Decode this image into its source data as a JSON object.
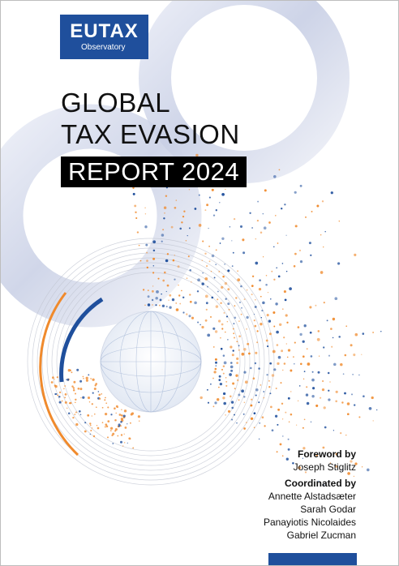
{
  "logo": {
    "main": "EUTAX",
    "sub": "Observatory"
  },
  "title": {
    "line1": "GLOBAL",
    "line2": "TAX EVASION",
    "line3": "REPORT 2024"
  },
  "credits": {
    "foreword_heading": "Foreword by",
    "foreword_names": [
      "Joseph Stiglitz"
    ],
    "coordinated_heading": "Coordinated by",
    "coordinated_names": [
      "Annette Alstadsæter",
      "Sarah Godar",
      "Panayiotis Nicolaides",
      "Gabriel Zucman"
    ]
  },
  "colors": {
    "brand_blue": "#1f4f9c",
    "accent_orange": "#f08a2c",
    "ring_grey": "#c9cfe3"
  }
}
